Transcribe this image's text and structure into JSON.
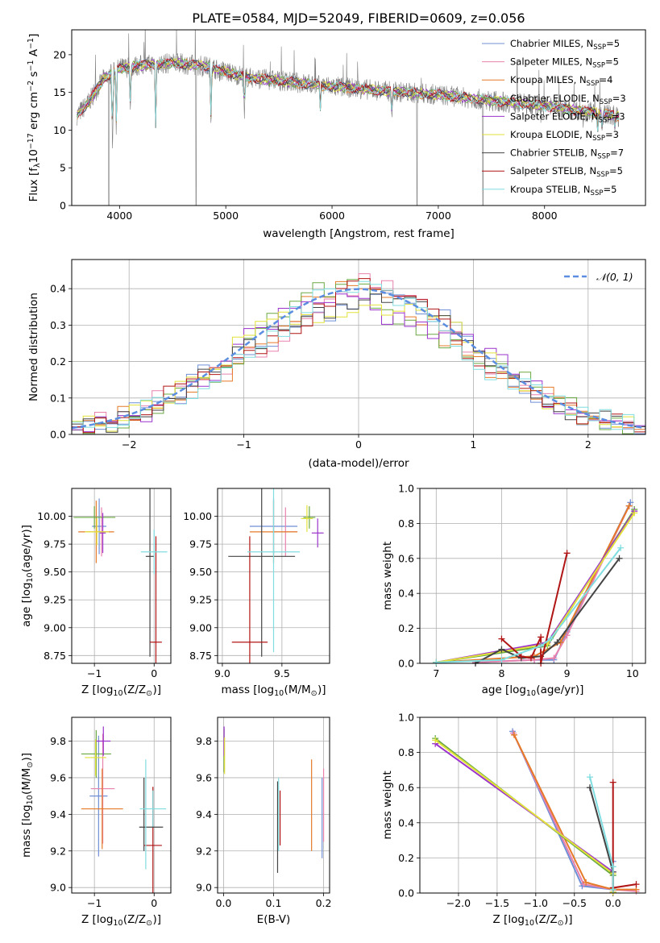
{
  "colors": {
    "Chabrier MILES": "#6f8fd6",
    "Salpeter MILES": "#e882ad",
    "Kroupa MILES": "#e57a28",
    "Chabrier ELODIE": "#6aa842",
    "Salpeter ELODIE": "#9b33cc",
    "Kroupa ELODIE": "#e2e23a",
    "Chabrier STELIB": "#444444",
    "Salpeter STELIB": "#b01414",
    "Kroupa STELIB": "#80dde0",
    "data": "#808080",
    "gauss": "#5b8ee0",
    "grid": "#b0b0b0"
  },
  "chart_data": [
    {
      "id": "spectrum",
      "type": "line",
      "title": "PLATE=0584, MJD=52049, FIBERID=0609, z=0.056",
      "xlabel": "wavelength [Angstrom, rest frame]",
      "ylabel": "Flux [f",
      "ylabel_sub": "λ",
      "ylabel_rest": "10",
      "ylabel_exp": "−17",
      "ylabel_units": " erg cm",
      "ylabel_units_exp": "−2",
      "ylabel_s": " s",
      "ylabel_s_exp": "−1",
      "ylabel_a": " A",
      "ylabel_a_exp": "−1",
      "ylabel_close": "]",
      "xlim": [
        3550,
        8950
      ],
      "ylim": [
        0,
        23.3
      ],
      "xticks": [
        "4000",
        "5000",
        "6000",
        "7000",
        "8000"
      ],
      "yticks": [
        "0",
        "5",
        "10",
        "15",
        "20"
      ],
      "grid": false,
      "legend_position": "top-right",
      "legend": [
        {
          "name": "Chabrier MILES, N",
          "sub": "SSP",
          "val": "=5"
        },
        {
          "name": "Salpeter MILES, N",
          "sub": "SSP",
          "val": "=5"
        },
        {
          "name": "Kroupa MILES, N",
          "sub": "SSP",
          "val": "=4"
        },
        {
          "name": "Chabrier ELODIE, N",
          "sub": "SSP",
          "val": "=3"
        },
        {
          "name": "Salpeter ELODIE, N",
          "sub": "SSP",
          "val": "=3"
        },
        {
          "name": "Kroupa ELODIE, N",
          "sub": "SSP",
          "val": "=3"
        },
        {
          "name": "Chabrier STELIB, N",
          "sub": "SSP",
          "val": "=7"
        },
        {
          "name": "Salpeter STELIB, N",
          "sub": "SSP",
          "val": "=5"
        },
        {
          "name": "Kroupa STELIB, N",
          "sub": "SSP",
          "val": "=5"
        }
      ],
      "continuum": [
        [
          3600,
          12
        ],
        [
          3700,
          13.5
        ],
        [
          3850,
          16.8
        ],
        [
          4000,
          18.2
        ],
        [
          4200,
          18.6
        ],
        [
          4500,
          18.9
        ],
        [
          4800,
          18.5
        ],
        [
          5200,
          17.0
        ],
        [
          5600,
          16.4
        ],
        [
          6000,
          15.8
        ],
        [
          6500,
          15.2
        ],
        [
          7000,
          14.7
        ],
        [
          7500,
          13.9
        ],
        [
          8000,
          13.2
        ],
        [
          8500,
          12.3
        ],
        [
          8700,
          11.8
        ]
      ],
      "absorptions": [
        [
          3934,
          6.5
        ],
        [
          3969,
          9.4
        ],
        [
          4102,
          12.0
        ],
        [
          4340,
          9.4
        ],
        [
          4861,
          10.3
        ],
        [
          5175,
          11.5
        ],
        [
          5890,
          12.2
        ],
        [
          6563,
          11.3
        ],
        [
          8500,
          9.5
        ],
        [
          8542,
          9.7
        ],
        [
          8662,
          9.8
        ]
      ],
      "gaps": [
        [
          3900,
          0
        ],
        [
          4720,
          0
        ],
        [
          6800,
          0
        ],
        [
          7420,
          0
        ]
      ]
    },
    {
      "id": "residuals",
      "type": "line",
      "xlabel": "(data-model)/error",
      "ylabel": "Normed distribution",
      "xlim": [
        -2.5,
        2.5
      ],
      "ylim": [
        0,
        0.48
      ],
      "xticks": [
        "−2",
        "−1",
        "0",
        "1",
        "2"
      ],
      "yticks": [
        "0.0",
        "0.1",
        "0.2",
        "0.3",
        "0.4"
      ],
      "grid": true,
      "legend_position": "top-right",
      "legend_label": "𝒩(0, 1)"
    },
    {
      "id": "age_vs_Z",
      "type": "scatter",
      "xlabel": "Z [log",
      "xlabel_sub": "10",
      "xlabel_rest": "(Z/Z",
      "xlabel_sun": "⊙",
      "xlabel_close": ")]",
      "ylabel": "age  [log",
      "ylabel_sub": "10",
      "ylabel_rest": "(age/yr)]",
      "xlim": [
        -1.38,
        0.28
      ],
      "ylim": [
        8.68,
        10.25
      ],
      "xticks": [
        {
          "v": -1,
          "t": "−1"
        },
        {
          "v": 0,
          "t": "0"
        }
      ],
      "yticks": [
        "8.75",
        "9.00",
        "9.25",
        "9.50",
        "9.75",
        "10.00"
      ],
      "grid": true,
      "points": [
        {
          "s": "Chabrier MILES",
          "x": -0.92,
          "xe": 0.12,
          "y": 9.91,
          "ye": 0.25
        },
        {
          "s": "Salpeter MILES",
          "x": -0.88,
          "xe": 0.1,
          "y": 9.86,
          "ye": 0.22
        },
        {
          "s": "Kroupa MILES",
          "x": -0.97,
          "xe": 0.3,
          "y": 9.86,
          "ye": 0.28
        },
        {
          "s": "Chabrier ELODIE",
          "x": -1.0,
          "xe": 0.35,
          "y": 9.99,
          "ye": 0.1
        },
        {
          "s": "Salpeter ELODIE",
          "x": -0.86,
          "xe": 0.05,
          "y": 9.85,
          "ye": 0.18
        },
        {
          "s": "Kroupa ELODIE",
          "x": -0.96,
          "xe": 0.2,
          "y": 9.86,
          "ye": 0.12
        },
        {
          "s": "Chabrier STELIB",
          "x": -0.07,
          "xe": 0.07,
          "y": 9.64,
          "ye": 0.9
        },
        {
          "s": "Salpeter STELIB",
          "x": 0.03,
          "xe": 0.1,
          "y": 8.87,
          "ye": 0.95
        },
        {
          "s": "Kroupa STELIB",
          "x": 0.0,
          "xe": 0.22,
          "y": 9.68,
          "ye": 0.2
        }
      ]
    },
    {
      "id": "age_vs_mass",
      "type": "scatter",
      "xlabel": "mass [log",
      "xlabel_sub": "10",
      "xlabel_rest": "(M/M",
      "xlabel_sun": "⊙",
      "xlabel_close": ")]",
      "ylabel": "",
      "xlim": [
        8.96,
        9.9
      ],
      "ylim": [
        8.68,
        10.25
      ],
      "xticks": [
        {
          "v": 9.0,
          "t": "9.0"
        },
        {
          "v": 9.5,
          "t": "9.5"
        }
      ],
      "yticks": [
        "8.75",
        "9.00",
        "9.25",
        "9.50",
        "9.75",
        "10.00"
      ],
      "grid": true,
      "points": [
        {
          "s": "Chabrier MILES",
          "x": 9.43,
          "xe": 0.2,
          "y": 9.91,
          "ye": 0.25
        },
        {
          "s": "Salpeter MILES",
          "x": 9.53,
          "xe": 0.1,
          "y": 9.86,
          "ye": 0.22
        },
        {
          "s": "Kroupa MILES",
          "x": 9.43,
          "xe": 0.2,
          "y": 9.86,
          "ye": 0.28
        },
        {
          "s": "Chabrier ELODIE",
          "x": 9.73,
          "xe": 0.05,
          "y": 9.99,
          "ye": 0.1
        },
        {
          "s": "Salpeter ELODIE",
          "x": 9.8,
          "xe": 0.05,
          "y": 9.85,
          "ye": 0.13
        },
        {
          "s": "Kroupa ELODIE",
          "x": 9.71,
          "xe": 0.05,
          "y": 9.98,
          "ye": 0.12
        },
        {
          "s": "Chabrier STELIB",
          "x": 9.33,
          "xe": 0.28,
          "y": 9.64,
          "ye": 0.9
        },
        {
          "s": "Salpeter STELIB",
          "x": 9.23,
          "xe": 0.15,
          "y": 8.87,
          "ye": 0.95
        },
        {
          "s": "Kroupa STELIB",
          "x": 9.43,
          "xe": 0.22,
          "y": 9.68,
          "ye": 0.9
        }
      ]
    },
    {
      "id": "massweight_vs_age",
      "type": "line",
      "xlabel": "age  [log",
      "xlabel_sub": "10",
      "xlabel_rest": "(age/yr)]",
      "ylabel": "mass weight",
      "xlim": [
        6.75,
        10.2
      ],
      "ylim": [
        0,
        1.0
      ],
      "xticks": [
        {
          "v": 7,
          "t": "7"
        },
        {
          "v": 8,
          "t": "8"
        },
        {
          "v": 9,
          "t": "9"
        },
        {
          "v": 10,
          "t": "10"
        }
      ],
      "yticks": [
        "0.0",
        "0.2",
        "0.4",
        "0.6",
        "0.8",
        "1.0"
      ],
      "grid": true,
      "series": [
        {
          "s": "Chabrier MILES",
          "x": [
            7.6,
            8.5,
            8.8,
            9.0,
            9.97
          ],
          "y": [
            0.005,
            0.02,
            0.02,
            0.18,
            0.92
          ]
        },
        {
          "s": "Salpeter MILES",
          "x": [
            7.6,
            8.5,
            8.8,
            9.0,
            9.95
          ],
          "y": [
            0.005,
            0.02,
            0.03,
            0.16,
            0.9
          ]
        },
        {
          "s": "Kroupa MILES",
          "x": [
            7.0,
            8.5,
            8.9,
            9.95
          ],
          "y": [
            0.005,
            0.04,
            0.12,
            0.9
          ]
        },
        {
          "s": "Chabrier ELODIE",
          "x": [
            7.0,
            8.7,
            10.03
          ],
          "y": [
            0.005,
            0.1,
            0.88
          ]
        },
        {
          "s": "Salpeter ELODIE",
          "x": [
            7.0,
            8.7,
            10.03
          ],
          "y": [
            0.005,
            0.12,
            0.87
          ]
        },
        {
          "s": "Kroupa ELODIE",
          "x": [
            7.0,
            8.7,
            10.03
          ],
          "y": [
            0.005,
            0.11,
            0.86
          ]
        },
        {
          "s": "Chabrier STELIB",
          "x": [
            7.6,
            8.0,
            8.3,
            8.6,
            8.85,
            9.8
          ],
          "y": [
            0.0,
            0.08,
            0.03,
            0.04,
            0.12,
            0.6
          ]
        },
        {
          "s": "Salpeter STELIB",
          "x": [
            8.0,
            8.3,
            8.45,
            8.6,
            8.6,
            9.0
          ],
          "y": [
            0.14,
            0.04,
            0.03,
            0.15,
            0.0,
            0.63
          ]
        },
        {
          "s": "Kroupa STELIB",
          "x": [
            7.0,
            8.0,
            8.6,
            8.75,
            9.82
          ],
          "y": [
            0.005,
            0.02,
            0.1,
            0.14,
            0.66
          ]
        }
      ]
    },
    {
      "id": "mass_vs_Z",
      "type": "scatter",
      "xlabel": "Z [log",
      "xlabel_sub": "10",
      "xlabel_rest": "(Z/Z",
      "xlabel_sun": "⊙",
      "xlabel_close": ")]",
      "ylabel": "mass [log",
      "ylabel_sub": "10",
      "ylabel_rest": "(M/M",
      "ylabel_sun": "⊙",
      "ylabel_close": ")]",
      "xlim": [
        -1.38,
        0.28
      ],
      "ylim": [
        8.97,
        9.93
      ],
      "xticks": [
        {
          "v": -1,
          "t": "−1"
        },
        {
          "v": 0,
          "t": "0"
        }
      ],
      "yticks": [
        "9.0",
        "9.2",
        "9.4",
        "9.6",
        "9.8"
      ],
      "grid": true,
      "points": [
        {
          "s": "Chabrier MILES",
          "x": -0.93,
          "xe": 0.15,
          "y": 9.5,
          "ye": 0.33
        },
        {
          "s": "Salpeter MILES",
          "x": -0.86,
          "xe": 0.2,
          "y": 9.54,
          "ye": 0.3
        },
        {
          "s": "Kroupa MILES",
          "x": -0.87,
          "xe": 0.35,
          "y": 9.43,
          "ye": 0.22
        },
        {
          "s": "Chabrier ELODIE",
          "x": -0.97,
          "xe": 0.25,
          "y": 9.73,
          "ye": 0.13
        },
        {
          "s": "Salpeter ELODIE",
          "x": -0.85,
          "xe": 0.12,
          "y": 9.8,
          "ye": 0.08
        },
        {
          "s": "Kroupa ELODIE",
          "x": -0.98,
          "xe": 0.18,
          "y": 9.71,
          "ye": 0.1
        },
        {
          "s": "Chabrier STELIB",
          "x": -0.17,
          "xe": 0.01,
          "y": 9.4,
          "ye": 0.2
        },
        {
          "s": "Salpeter STELIB",
          "x": -0.02,
          "xe": 0.15,
          "y": 9.23,
          "ye": 0.32
        },
        {
          "s": "Kroupa STELIB",
          "x": -0.02,
          "xe": 0.22,
          "y": 9.43,
          "ye": 0.1
        }
      ],
      "extra": [
        {
          "s": "Chabrier STELIB",
          "x": -0.05,
          "xe": 0.2,
          "y": 9.33,
          "ye": 0.0
        },
        {
          "s": "Kroupa STELIB",
          "x": -0.14,
          "xe": 0.0,
          "y": 9.4,
          "ye": 0.3
        }
      ]
    },
    {
      "id": "mass_vs_ebv",
      "type": "scatter",
      "xlabel": "E(B-V)",
      "ylabel": "",
      "xlim": [
        -0.012,
        0.212
      ],
      "ylim": [
        8.97,
        9.93
      ],
      "xticks": [
        {
          "v": 0.0,
          "t": "0.0"
        },
        {
          "v": 0.1,
          "t": "0.1"
        },
        {
          "v": 0.2,
          "t": "0.2"
        }
      ],
      "yticks": [
        "9.0",
        "9.2",
        "9.4",
        "9.6",
        "9.8"
      ],
      "grid": true,
      "points": [
        {
          "s": "Chabrier MILES",
          "x": 0.197,
          "xe": 0.0,
          "y": 9.38,
          "ye": 0.22
        },
        {
          "s": "Salpeter MILES",
          "x": 0.2,
          "xe": 0.0,
          "y": 9.45,
          "ye": 0.2
        },
        {
          "s": "Kroupa MILES",
          "x": 0.176,
          "xe": 0.0,
          "y": 9.45,
          "ye": 0.25
        },
        {
          "s": "Chabrier ELODIE",
          "x": 0.001,
          "xe": 0.0,
          "y": 9.75,
          "ye": 0.12
        },
        {
          "s": "Salpeter ELODIE",
          "x": 0.001,
          "xe": 0.0,
          "y": 9.8,
          "ye": 0.08
        },
        {
          "s": "Kroupa ELODIE",
          "x": 0.002,
          "xe": 0.0,
          "y": 9.72,
          "ye": 0.1
        },
        {
          "s": "Chabrier STELIB",
          "x": 0.108,
          "xe": 0.0,
          "y": 9.33,
          "ye": 0.25
        },
        {
          "s": "Salpeter STELIB",
          "x": 0.113,
          "xe": 0.0,
          "y": 9.38,
          "ye": 0.15
        },
        {
          "s": "Kroupa STELIB",
          "x": 0.11,
          "xe": 0.0,
          "y": 9.4,
          "ye": 0.2
        }
      ]
    },
    {
      "id": "massweight_vs_Z",
      "type": "line",
      "xlabel": "Z [log",
      "xlabel_sub": "10",
      "xlabel_rest": "(Z/Z",
      "xlabel_sun": "⊙",
      "xlabel_close": ")]",
      "ylabel": "mass weight",
      "xlim": [
        -2.5,
        0.42
      ],
      "ylim": [
        0,
        1.0
      ],
      "xticks": [
        {
          "v": -2,
          "t": "−2.0"
        },
        {
          "v": -1.5,
          "t": "−1.5"
        },
        {
          "v": -1,
          "t": "−1.0"
        },
        {
          "v": -0.5,
          "t": "−0.5"
        },
        {
          "v": 0,
          "t": "0.0"
        }
      ],
      "yticks": [
        "0.0",
        "0.2",
        "0.4",
        "0.6",
        "0.8",
        "1.0"
      ],
      "grid": true,
      "series": [
        {
          "s": "Chabrier MILES",
          "x": [
            -1.3,
            -0.4,
            0.0,
            0.0
          ],
          "y": [
            0.92,
            0.04,
            0.02,
            0.18
          ]
        },
        {
          "s": "Salpeter MILES",
          "x": [
            -1.29,
            -0.38,
            0.0,
            0.3
          ],
          "y": [
            0.91,
            0.05,
            0.02,
            0.01
          ]
        },
        {
          "s": "Kroupa MILES",
          "x": [
            -1.28,
            -0.35,
            0.0,
            0.3
          ],
          "y": [
            0.9,
            0.06,
            0.02,
            0.02
          ]
        },
        {
          "s": "Chabrier ELODIE",
          "x": [
            -2.3,
            0.0,
            0.0
          ],
          "y": [
            0.88,
            0.1,
            0.005
          ]
        },
        {
          "s": "Salpeter ELODIE",
          "x": [
            -2.3,
            0.0,
            0.0
          ],
          "y": [
            0.85,
            0.12,
            0.005
          ]
        },
        {
          "s": "Kroupa ELODIE",
          "x": [
            -2.3,
            0.0,
            0.0
          ],
          "y": [
            0.87,
            0.11,
            0.005
          ]
        },
        {
          "s": "Chabrier STELIB",
          "x": [
            -0.3,
            0.0,
            0.0
          ],
          "y": [
            0.6,
            0.12,
            0.02
          ]
        },
        {
          "s": "Salpeter STELIB",
          "x": [
            0.0,
            0.0,
            0.3
          ],
          "y": [
            0.63,
            0.03,
            0.05
          ]
        },
        {
          "s": "Kroupa STELIB",
          "x": [
            -0.3,
            0.0,
            0.0
          ],
          "y": [
            0.66,
            0.15,
            0.02
          ]
        }
      ]
    }
  ]
}
